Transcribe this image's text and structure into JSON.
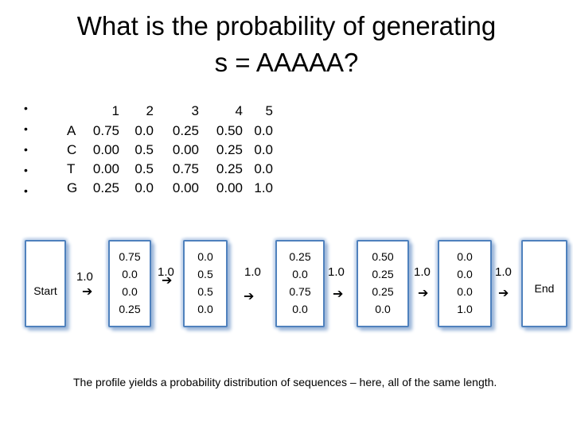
{
  "title": {
    "line1": "What is the probability of generating",
    "line2": "s = AAAAA?"
  },
  "bullet_glyph": "•",
  "profile": {
    "columns": [
      "1",
      "2",
      "3",
      "4",
      "5"
    ],
    "rows": [
      {
        "label": "A",
        "values": [
          "0.75",
          "0.0",
          "0.25",
          "0.50",
          "0.0"
        ]
      },
      {
        "label": "C",
        "values": [
          "0.00",
          "0.5",
          "0.00",
          "0.25",
          "0.0"
        ]
      },
      {
        "label": "T",
        "values": [
          "0.00",
          "0.5",
          "0.75",
          "0.25",
          "0.0"
        ]
      },
      {
        "label": "G",
        "values": [
          "0.25",
          "0.0",
          "0.00",
          "0.00",
          "1.0"
        ]
      }
    ]
  },
  "hmm": {
    "start_label": "Start",
    "end_label": "End",
    "transition_prob": "1.0",
    "arrow_glyph": "➔",
    "states": [
      [
        "0.75",
        "0.0",
        "0.0",
        "0.25"
      ],
      [
        "0.0",
        "0.5",
        "0.5",
        "0.0"
      ],
      [
        "0.25",
        "0.0",
        "0.75",
        "0.0"
      ],
      [
        "0.50",
        "0.25",
        "0.25",
        "0.0"
      ],
      [
        "0.0",
        "0.0",
        "0.0",
        "1.0"
      ]
    ]
  },
  "caption": "The profile yields a probability distribution of sequences – here, all of the same length.",
  "colors": {
    "box_border": "#4f81bd",
    "box_shadow": "#9db7d9"
  }
}
